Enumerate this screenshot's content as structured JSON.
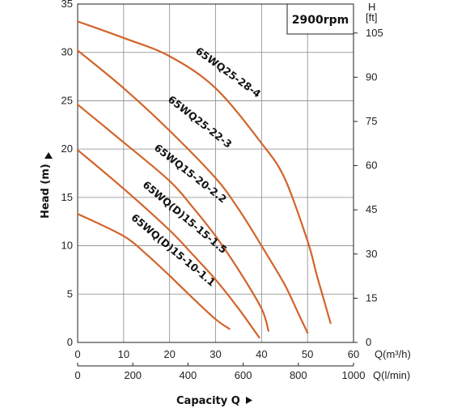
{
  "chart_data": {
    "type": "line",
    "title": "",
    "annotation": "2900rpm",
    "x_axis": {
      "primary": {
        "ticks": [
          0,
          10,
          20,
          30,
          40,
          50,
          60
        ],
        "unit": "Q(m³/h)",
        "range": [
          0,
          60
        ]
      },
      "secondary": {
        "ticks": [
          0,
          200,
          400,
          600,
          800,
          1000
        ],
        "unit": "Q(l/min)",
        "range": [
          0,
          1000
        ]
      },
      "label": "Capacity Q"
    },
    "y_axis": {
      "left": {
        "ticks": [
          0,
          5,
          10,
          15,
          20,
          25,
          30,
          35
        ],
        "range": [
          0,
          35
        ],
        "label": "Head (m)"
      },
      "right": {
        "ticks": [
          0,
          15,
          30,
          45,
          60,
          75,
          90,
          105
        ],
        "unit_line1": "H",
        "unit_line2": "[ft]"
      }
    },
    "grid": true,
    "series": [
      {
        "name": "65WQ25-28-4",
        "color": "#d2642a",
        "points": [
          [
            0,
            33.2
          ],
          [
            10,
            31.5
          ],
          [
            20,
            29.6
          ],
          [
            30,
            26.3
          ],
          [
            40,
            20.6
          ],
          [
            45,
            17.0
          ],
          [
            50,
            10.5
          ],
          [
            52,
            7.0
          ],
          [
            55,
            2.0
          ]
        ]
      },
      {
        "name": "65WQ25-22-3",
        "color": "#d2642a",
        "points": [
          [
            0,
            30.2
          ],
          [
            10,
            26.3
          ],
          [
            20,
            21.9
          ],
          [
            30,
            17.0
          ],
          [
            35,
            13.8
          ],
          [
            40,
            10.0
          ],
          [
            45,
            6.0
          ],
          [
            48,
            3.0
          ],
          [
            50,
            1.0
          ]
        ]
      },
      {
        "name": "65WQ15-20-2.2",
        "color": "#d2642a",
        "points": [
          [
            0,
            24.6
          ],
          [
            10,
            20.7
          ],
          [
            20,
            16.7
          ],
          [
            25,
            14.0
          ],
          [
            30,
            11.0
          ],
          [
            35,
            7.5
          ],
          [
            40,
            3.5
          ],
          [
            41.5,
            1.2
          ]
        ]
      },
      {
        "name": "65WQ(D)15-15-1.5",
        "color": "#d2642a",
        "points": [
          [
            0,
            19.9
          ],
          [
            10,
            15.9
          ],
          [
            20,
            11.6
          ],
          [
            25,
            9.1
          ],
          [
            30,
            6.5
          ],
          [
            35,
            3.5
          ],
          [
            39.5,
            0.5
          ]
        ]
      },
      {
        "name": "65WQ(D)15-10-1.1",
        "color": "#d2642a",
        "points": [
          [
            0,
            13.3
          ],
          [
            10,
            11.0
          ],
          [
            15,
            9.1
          ],
          [
            20,
            6.9
          ],
          [
            25,
            4.6
          ],
          [
            30,
            2.4
          ],
          [
            33,
            1.4
          ]
        ]
      }
    ]
  }
}
